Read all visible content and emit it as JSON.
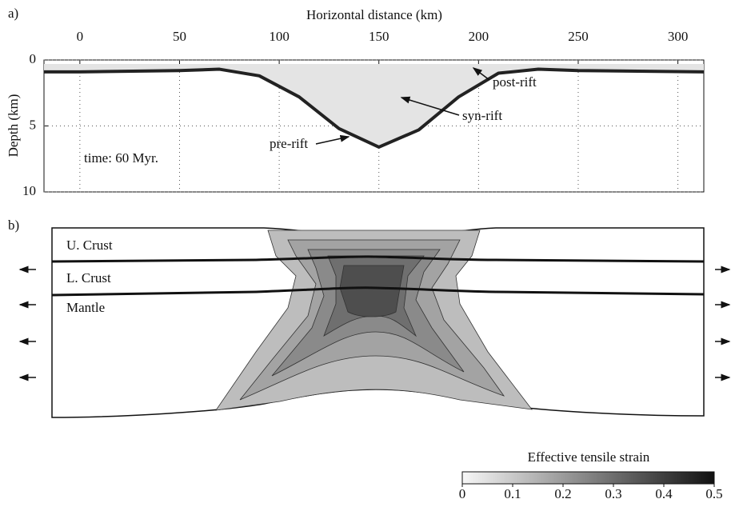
{
  "chart_data": [
    {
      "type": "profile",
      "panel_label": "a)",
      "xlabel": "Horizontal distance (km)",
      "ylabel": "Depth (km)",
      "xlim": [
        -18,
        313
      ],
      "xticks": [
        0,
        50,
        100,
        150,
        200,
        250,
        300
      ],
      "ylim": [
        0,
        10
      ],
      "yticks": [
        0,
        5,
        10
      ],
      "y_reversed": true,
      "grid": true,
      "x": [
        -18,
        0,
        50,
        70,
        90,
        110,
        130,
        150,
        170,
        190,
        210,
        230,
        250,
        313
      ],
      "values": [
        0.9,
        0.9,
        0.8,
        0.7,
        1.2,
        2.8,
        5.2,
        6.6,
        5.3,
        2.8,
        1.0,
        0.7,
        0.8,
        0.9
      ],
      "color": "#222222",
      "annotations": [
        "post-rift",
        "syn-rift",
        "pre-rift"
      ],
      "note": "time: 60 Myr."
    },
    {
      "type": "section",
      "panel_label": "b)",
      "labels": [
        "U. Crust",
        "L. Crust",
        "Mantle"
      ]
    },
    {
      "type": "colorbar",
      "title": "Effective tensile strain",
      "xlim": [
        0,
        0.5
      ],
      "xticks": [
        0,
        0.1,
        0.2,
        0.3,
        0.4,
        0.5
      ],
      "colors": [
        "#f7f7f7",
        "#111111"
      ]
    }
  ]
}
